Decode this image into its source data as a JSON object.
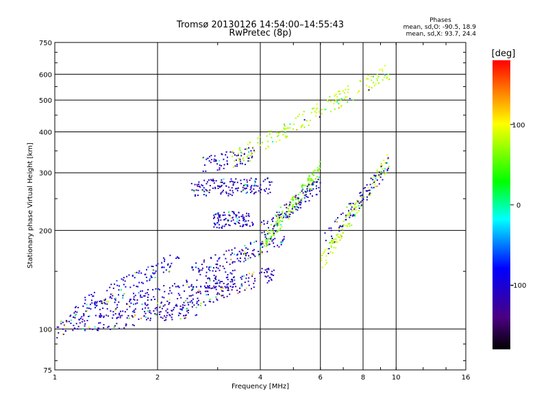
{
  "chart_data": {
    "type": "scatter",
    "title": "Tromsø 20130126 14:54:00–14:55:43",
    "subtitle": "RwPretec (8p)",
    "xlabel": "Frequency [MHz]",
    "ylabel": "Stationary phase Virtual Height [km]",
    "x_scale": "log",
    "y_scale": "log",
    "xlim": [
      1,
      16
    ],
    "ylim": [
      75,
      750
    ],
    "x_ticks": [
      1,
      2,
      4,
      6,
      8,
      10,
      16
    ],
    "x_tick_labels": [
      "1",
      "2",
      "4",
      "6",
      "8",
      "10",
      "16"
    ],
    "y_ticks": [
      75,
      100,
      200,
      300,
      400,
      500,
      600,
      750
    ],
    "y_tick_labels": [
      "75",
      "100",
      "200",
      "300",
      "400",
      "500",
      "600",
      "750"
    ],
    "grid": true,
    "stats": {
      "header": "Phases",
      "line1": "mean, sd,O: -90.5, 18.9",
      "line2": "mean, sd,X:  93.7, 24.4"
    },
    "colorbar": {
      "label": "[deg]",
      "range": [
        -180,
        180
      ],
      "ticks": [
        100,
        0,
        -100
      ],
      "tick_labels": [
        "100",
        "0",
        "-100"
      ]
    },
    "clusters": [
      {
        "x_range": [
          1.0,
          2.6
        ],
        "h_start": 100,
        "h_end": 116,
        "phase": -110,
        "count": 160
      },
      {
        "x_range": [
          1.1,
          3.4
        ],
        "h_start": 110,
        "h_end": 145,
        "phase": -110,
        "count": 200
      },
      {
        "x_range": [
          2.0,
          4.4
        ],
        "h_start": 112,
        "h_end": 150,
        "phase": -115,
        "count": 150
      },
      {
        "x_range": [
          1.2,
          2.3
        ],
        "h_start": 118,
        "h_end": 165,
        "phase": -100,
        "count": 110
      },
      {
        "x_range": [
          2.5,
          4.7
        ],
        "h_start": 150,
        "h_end": 190,
        "phase": -110,
        "count": 130
      },
      {
        "x_range": [
          2.5,
          4.3
        ],
        "h_start": 270,
        "h_end": 275,
        "phase": -110,
        "count": 150
      },
      {
        "x_range": [
          2.9,
          3.8
        ],
        "h_start": 215,
        "h_end": 218,
        "phase": -110,
        "count": 100
      },
      {
        "x_range": [
          2.7,
          3.8
        ],
        "h_start": 320,
        "h_end": 340,
        "phase": -110,
        "count": 70
      },
      {
        "x_range": [
          4.0,
          6.0
        ],
        "h_start": 180,
        "h_end": 310,
        "phase": 60,
        "count": 170
      },
      {
        "x_range": [
          4.0,
          6.0
        ],
        "h_start": 200,
        "h_end": 280,
        "phase": -110,
        "count": 110
      },
      {
        "x_range": [
          6.0,
          9.5
        ],
        "h_start": 160,
        "h_end": 330,
        "phase": 80,
        "count": 140
      },
      {
        "x_range": [
          6.0,
          9.5
        ],
        "h_start": 180,
        "h_end": 320,
        "phase": -110,
        "count": 80
      },
      {
        "x_range": [
          3.3,
          9.6
        ],
        "h_start": 330,
        "h_end": 620,
        "phase": 80,
        "count": 170
      }
    ]
  }
}
